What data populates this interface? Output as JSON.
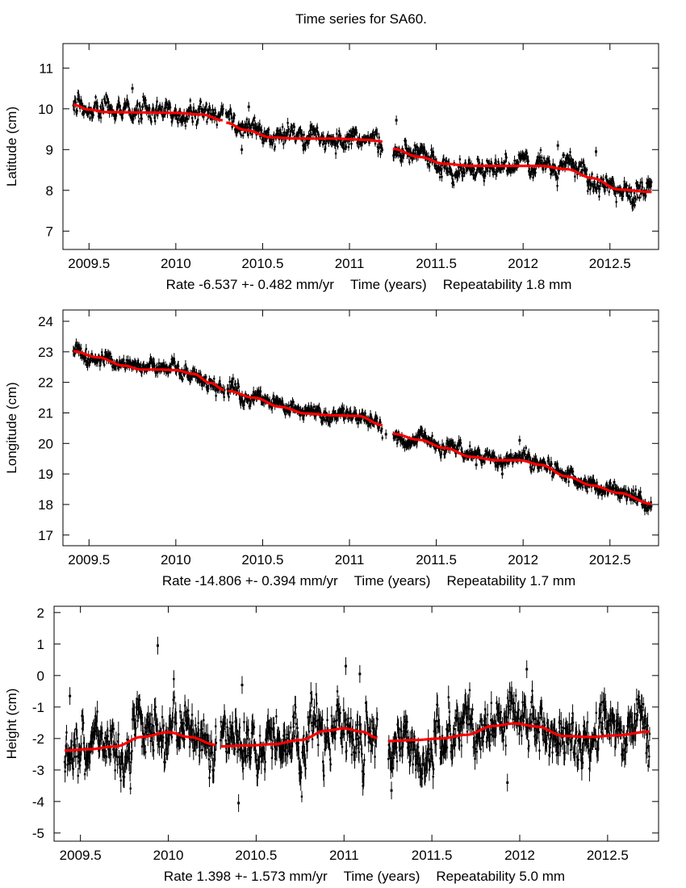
{
  "figure_title": "Time series for SA60.",
  "colors": {
    "data": "#000000",
    "fit": "#ff0000",
    "frame": "#000000"
  },
  "chart_data": [
    {
      "type": "scatter",
      "id": "latitude",
      "ylabel": "Latitude (cm)",
      "xlabel": "Time (years)",
      "rate_text": "Rate -6.537 +- 0.482 mm/yr",
      "repeatability_text": "Repeatability 1.8 mm",
      "rate_mm_per_yr": -6.537,
      "rate_sigma_mm_per_yr": 0.482,
      "repeatability_mm": 1.8,
      "xlim": [
        2009.35,
        2012.78
      ],
      "ylim": [
        6.55,
        11.6
      ],
      "xticks": [
        2009.5,
        2010,
        2010.5,
        2011,
        2011.5,
        2012,
        2012.5
      ],
      "xtick_labels": [
        "2009.5",
        "2010",
        "2010.5",
        "2011",
        "2011.5",
        "2012",
        "2012.5"
      ],
      "yticks": [
        7,
        8,
        9,
        10,
        11
      ],
      "ytick_labels": [
        "7",
        "8",
        "9",
        "10",
        "11"
      ],
      "data_range": [
        2009.41,
        2012.74
      ],
      "data_gap": [
        2011.19,
        2011.25
      ],
      "noise_cm": 0.13,
      "fit_series": {
        "name": "model fit",
        "segments": [
          {
            "x": [
              2009.41,
              2009.5,
              2009.6,
              2009.8,
              2010.0,
              2010.15,
              2010.27
            ],
            "y": [
              10.1,
              9.98,
              9.92,
              9.91,
              9.9,
              9.86,
              9.72
            ]
          },
          {
            "x": [
              2010.29,
              2010.4,
              2010.55,
              2010.7,
              2010.9,
              2011.1,
              2011.19
            ],
            "y": [
              9.66,
              9.48,
              9.3,
              9.27,
              9.27,
              9.24,
              9.2
            ]
          },
          {
            "x": [
              2011.25,
              2011.4,
              2011.55,
              2011.7,
              2011.9,
              2012.1,
              2012.25,
              2012.4,
              2012.55,
              2012.74
            ],
            "y": [
              9.02,
              8.82,
              8.65,
              8.6,
              8.6,
              8.6,
              8.52,
              8.3,
              8.02,
              7.96
            ]
          }
        ]
      },
      "outliers": [
        {
          "x": 2009.75,
          "y": 10.5
        },
        {
          "x": 2010.42,
          "y": 10.05
        },
        {
          "x": 2010.38,
          "y": 9.0
        },
        {
          "x": 2011.27,
          "y": 9.72
        },
        {
          "x": 2012.2,
          "y": 9.1
        },
        {
          "x": 2012.42,
          "y": 8.95
        }
      ]
    },
    {
      "type": "scatter",
      "id": "longitude",
      "ylabel": "Longitude (cm)",
      "xlabel": "Time (years)",
      "rate_text": "Rate -14.806 +- 0.394 mm/yr",
      "repeatability_text": "Repeatability 1.7 mm",
      "rate_mm_per_yr": -14.806,
      "rate_sigma_mm_per_yr": 0.394,
      "repeatability_mm": 1.7,
      "xlim": [
        2009.35,
        2012.78
      ],
      "ylim": [
        16.65,
        24.37
      ],
      "xticks": [
        2009.5,
        2010,
        2010.5,
        2011,
        2011.5,
        2012,
        2012.5
      ],
      "xtick_labels": [
        "2009.5",
        "2010",
        "2010.5",
        "2011",
        "2011.5",
        "2012",
        "2012.5"
      ],
      "yticks": [
        17,
        18,
        19,
        20,
        21,
        22,
        23,
        24
      ],
      "ytick_labels": [
        "17",
        "18",
        "19",
        "20",
        "21",
        "22",
        "23",
        "24"
      ],
      "data_range": [
        2009.41,
        2012.74
      ],
      "data_gap": [
        2011.19,
        2011.25
      ],
      "noise_cm": 0.12,
      "fit_series": {
        "name": "model fit",
        "segments": [
          {
            "x": [
              2009.41,
              2009.55,
              2009.7,
              2009.8,
              2009.9,
              2010.0,
              2010.1,
              2010.2,
              2010.28
            ],
            "y": [
              23.02,
              22.82,
              22.55,
              22.42,
              22.42,
              22.4,
              22.28,
              21.98,
              21.75
            ]
          },
          {
            "x": [
              2010.3,
              2010.45,
              2010.6,
              2010.75,
              2010.9,
              2011.05,
              2011.19
            ],
            "y": [
              21.72,
              21.5,
              21.2,
              20.98,
              20.92,
              20.9,
              20.6
            ]
          },
          {
            "x": [
              2011.25,
              2011.4,
              2011.55,
              2011.7,
              2011.85,
              2011.98,
              2012.1,
              2012.25,
              2012.4,
              2012.55,
              2012.74
            ],
            "y": [
              20.32,
              20.12,
              19.85,
              19.56,
              19.45,
              19.45,
              19.3,
              18.92,
              18.62,
              18.38,
              18.02
            ]
          }
        ]
      },
      "outliers": [
        {
          "x": 2009.48,
          "y": 22.7
        },
        {
          "x": 2010.33,
          "y": 22.12
        },
        {
          "x": 2011.21,
          "y": 20.3
        },
        {
          "x": 2011.98,
          "y": 20.1
        },
        {
          "x": 2011.88,
          "y": 19.0
        },
        {
          "x": 2011.73,
          "y": 19.3
        }
      ]
    },
    {
      "type": "scatter",
      "id": "height",
      "ylabel": "Height (cm)",
      "xlabel": "Time (years)",
      "rate_text": "Rate 1.398 +- 1.573 mm/yr",
      "repeatability_text": "Repeatability 5.0 mm",
      "rate_mm_per_yr": 1.398,
      "rate_sigma_mm_per_yr": 1.573,
      "repeatability_mm": 5.0,
      "xlim": [
        2009.35,
        2012.79
      ],
      "ylim": [
        -5.26,
        2.2
      ],
      "xticks": [
        2009.5,
        2010,
        2010.5,
        2011,
        2011.5,
        2012,
        2012.5
      ],
      "xtick_labels": [
        "2009.5",
        "2010",
        "2010.5",
        "2011",
        "2011.5",
        "2012",
        "2012.5"
      ],
      "yticks": [
        -5,
        -4,
        -3,
        -2,
        -1,
        0,
        1,
        2
      ],
      "ytick_labels": [
        "-5",
        "-4",
        "-3",
        "-2",
        "-1",
        "0",
        "1",
        "2"
      ],
      "data_range": [
        2009.41,
        2012.74
      ],
      "data_gap": [
        2011.19,
        2011.25
      ],
      "noise_cm": 0.42,
      "fit_series": {
        "name": "model fit",
        "segments": [
          {
            "x": [
              2009.41,
              2009.55,
              2009.7,
              2009.85,
              2010.0,
              2010.12,
              2010.27
            ],
            "y": [
              -2.38,
              -2.34,
              -2.25,
              -1.95,
              -1.8,
              -1.95,
              -2.2
            ]
          },
          {
            "x": [
              2010.3,
              2010.45,
              2010.6,
              2010.75,
              2010.9,
              2011.0,
              2011.1,
              2011.19
            ],
            "y": [
              -2.25,
              -2.22,
              -2.18,
              -2.05,
              -1.75,
              -1.68,
              -1.78,
              -1.98
            ]
          },
          {
            "x": [
              2011.25,
              2011.4,
              2011.55,
              2011.7,
              2011.85,
              2011.97,
              2012.1,
              2012.25,
              2012.4,
              2012.55,
              2012.74
            ],
            "y": [
              -2.08,
              -2.05,
              -2.0,
              -1.88,
              -1.6,
              -1.52,
              -1.62,
              -1.92,
              -1.95,
              -1.9,
              -1.78
            ]
          }
        ]
      },
      "outliers": [
        {
          "x": 2009.44,
          "y": -0.65
        },
        {
          "x": 2009.94,
          "y": 0.95
        },
        {
          "x": 2010.4,
          "y": -4.05
        },
        {
          "x": 2010.42,
          "y": -0.3
        },
        {
          "x": 2011.01,
          "y": 0.3
        },
        {
          "x": 2011.09,
          "y": 0.05
        },
        {
          "x": 2011.27,
          "y": -3.65
        },
        {
          "x": 2012.04,
          "y": 0.2
        },
        {
          "x": 2011.93,
          "y": -3.4
        }
      ]
    }
  ]
}
